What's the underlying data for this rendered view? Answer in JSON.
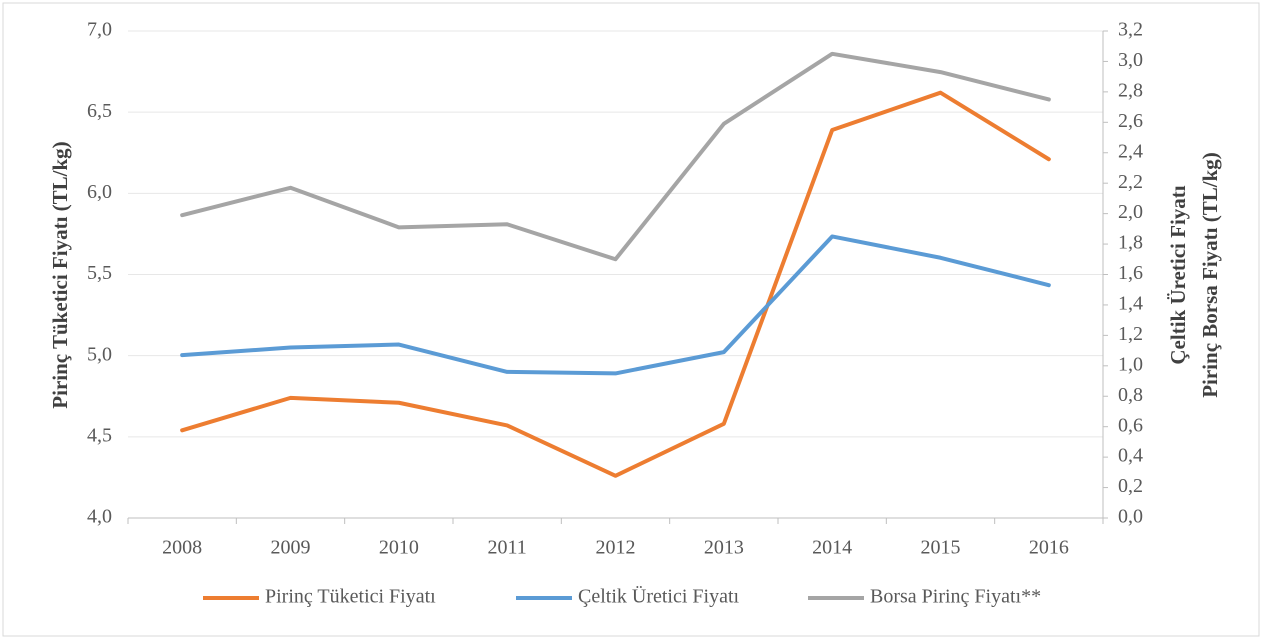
{
  "chart_data": {
    "type": "line",
    "ylabel": "Pirinç Tüketici Fiyatı (TL/kg)",
    "y2label": [
      "Çeltik Üretici Fiyatı",
      "Pirinç Borsa Fiyatı (TL/kg)"
    ],
    "categories": [
      "2008",
      "2009",
      "2010",
      "2011",
      "2012",
      "2013",
      "2014",
      "2015",
      "2016"
    ],
    "series": [
      {
        "name": "Pirinç Tüketici Fiyatı",
        "color": "#ed7d31",
        "axis": "y",
        "values": [
          4.54,
          4.74,
          4.71,
          4.57,
          4.26,
          4.58,
          6.39,
          6.62,
          6.21
        ]
      },
      {
        "name": "Çeltik Üretici Fiyatı",
        "color": "#5b9bd5",
        "axis": "y2",
        "values": [
          1.07,
          1.12,
          1.14,
          0.96,
          0.95,
          1.09,
          1.85,
          1.71,
          1.53
        ]
      },
      {
        "name": "Borsa Pirinç Fiyatı**",
        "color": "#a5a5a5",
        "axis": "y2",
        "values": [
          1.99,
          2.17,
          1.91,
          1.93,
          1.7,
          2.59,
          3.05,
          2.93,
          2.75
        ]
      }
    ],
    "ylim": [
      4,
      7
    ],
    "yticks": [
      {
        "value": 4,
        "label": "4,0"
      },
      {
        "value": 4.5,
        "label": "4,5"
      },
      {
        "value": 5,
        "label": "5,0"
      },
      {
        "value": 5.5,
        "label": "5,5"
      },
      {
        "value": 6,
        "label": "6,0"
      },
      {
        "value": 6.5,
        "label": "6,5"
      },
      {
        "value": 7,
        "label": "7,0"
      }
    ],
    "y2lim": [
      0,
      3.2
    ],
    "y2ticks": [
      {
        "value": 0,
        "label": "0,0"
      },
      {
        "value": 0.2,
        "label": "0,2"
      },
      {
        "value": 0.4,
        "label": "0,4"
      },
      {
        "value": 0.6,
        "label": "0,6"
      },
      {
        "value": 0.8,
        "label": "0,8"
      },
      {
        "value": 1,
        "label": "1,0"
      },
      {
        "value": 1.2,
        "label": "1,2"
      },
      {
        "value": 1.4,
        "label": "1,4"
      },
      {
        "value": 1.6,
        "label": "1,6"
      },
      {
        "value": 1.8,
        "label": "1,8"
      },
      {
        "value": 2,
        "label": "2,0"
      },
      {
        "value": 2.2,
        "label": "2,2"
      },
      {
        "value": 2.4,
        "label": "2,4"
      },
      {
        "value": 2.6,
        "label": "2,6"
      },
      {
        "value": 2.8,
        "label": "2,8"
      },
      {
        "value": 3,
        "label": "3,0"
      },
      {
        "value": 3.2,
        "label": "3,2"
      }
    ],
    "grid": true,
    "legend": "bottom"
  }
}
